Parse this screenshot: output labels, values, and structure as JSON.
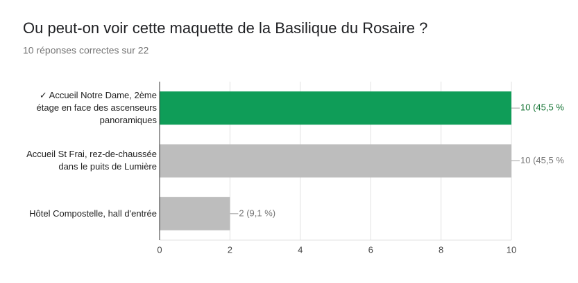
{
  "chart_data": {
    "type": "bar",
    "orientation": "horizontal",
    "title": "Ou peut-on voir cette maquette de la Basilique du Rosaire ?",
    "subtitle": "10 réponses correctes sur 22",
    "categories": [
      "✓ Accueil Notre Dame, 2ème étage en face des ascenseurs panoramiques",
      "Accueil St Frai, rez-de-chaussée dans le puits de Lumière",
      "Hôtel Compostelle, hall d'entrée"
    ],
    "values": [
      10,
      10,
      2
    ],
    "value_labels": [
      "10 (45,5 %",
      "10 (45,5 %",
      "2 (9,1 %)"
    ],
    "colors": [
      "#0f9d58",
      "#bdbdbd",
      "#bdbdbd"
    ],
    "label_colors": [
      "#137333",
      "#757575",
      "#757575"
    ],
    "xlim": [
      0,
      10
    ],
    "xticks": [
      0,
      2,
      4,
      6,
      8,
      10
    ],
    "grid": true
  }
}
